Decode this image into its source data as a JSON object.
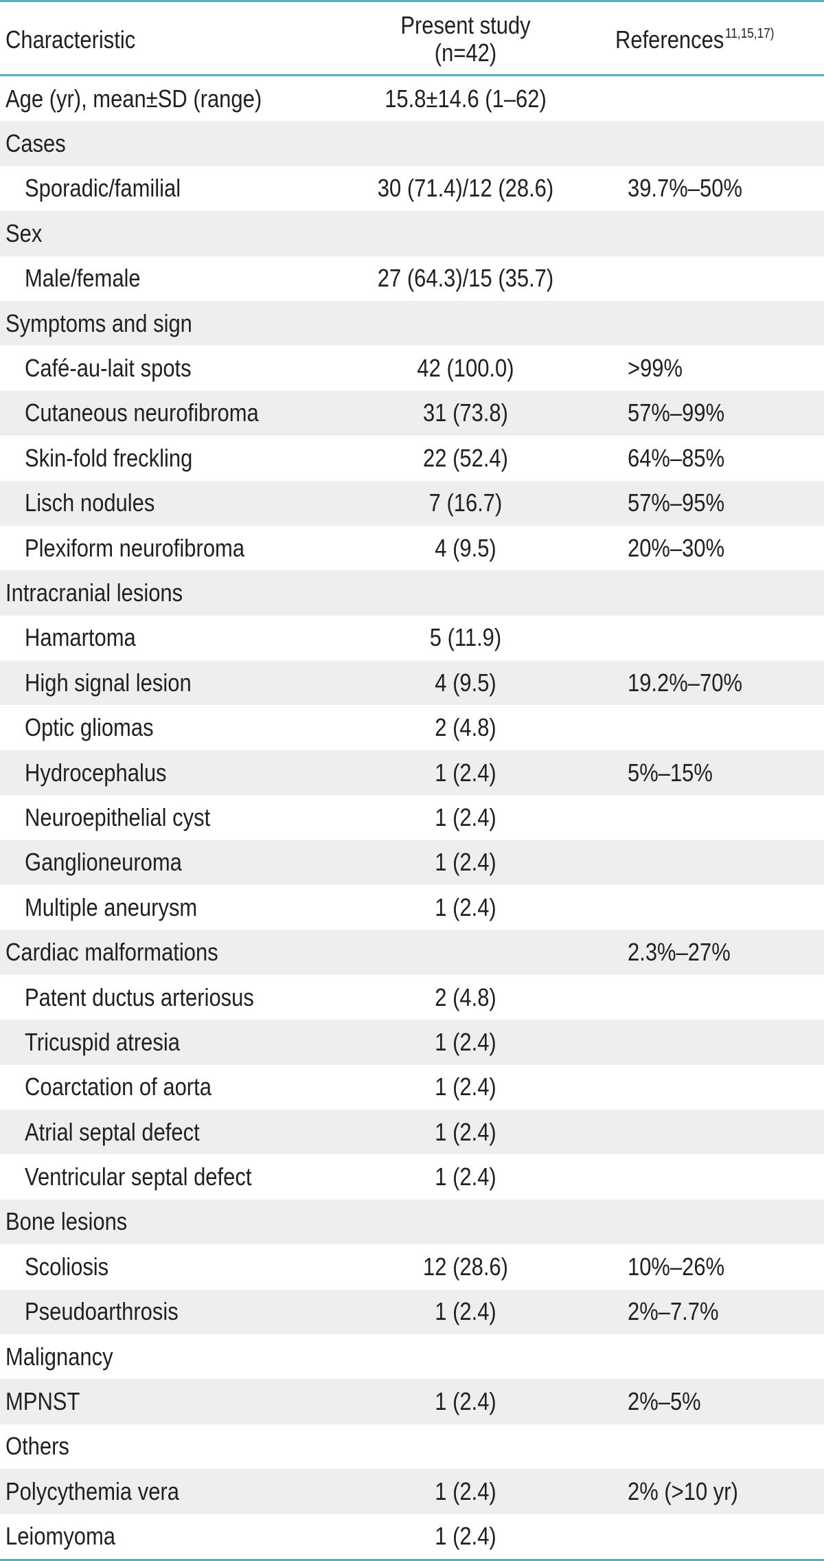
{
  "header": {
    "characteristic": "Characteristic",
    "present_line1": "Present study",
    "present_line2": "(n=42)",
    "references": "References",
    "references_sup": "11,15,17)"
  },
  "rows": [
    {
      "label": "Age (yr), mean±SD (range)",
      "present": "15.8±14.6 (1–62)",
      "ref": ""
    },
    {
      "label": "Cases",
      "present": "",
      "ref": ""
    },
    {
      "label": "Sporadic/familial",
      "present": "30 (71.4)/12 (28.6)",
      "ref": "39.7%–50%"
    },
    {
      "label": "Sex",
      "present": "",
      "ref": ""
    },
    {
      "label": "Male/female",
      "present": "27 (64.3)/15 (35.7)",
      "ref": ""
    },
    {
      "label": "Symptoms and sign",
      "present": "",
      "ref": ""
    },
    {
      "label": "Café-au-lait spots",
      "present": "42 (100.0)",
      "ref": ">99%"
    },
    {
      "label": "Cutaneous neurofibroma",
      "present": "31 (73.8)",
      "ref": "57%–99%"
    },
    {
      "label": "Skin-fold freckling",
      "present": "22 (52.4)",
      "ref": "64%–85%"
    },
    {
      "label": "Lisch nodules",
      "present": "7 (16.7)",
      "ref": "57%–95%"
    },
    {
      "label": "Plexiform neurofibroma",
      "present": "4 (9.5)",
      "ref": "20%–30%"
    },
    {
      "label": "Intracranial lesions",
      "present": "",
      "ref": ""
    },
    {
      "label": "Hamartoma",
      "present": "5 (11.9)",
      "ref": ""
    },
    {
      "label": "High signal lesion",
      "present": "4 (9.5)",
      "ref": "19.2%–70%"
    },
    {
      "label": "Optic gliomas",
      "present": "2 (4.8)",
      "ref": ""
    },
    {
      "label": "Hydrocephalus",
      "present": "1 (2.4)",
      "ref": "5%–15%"
    },
    {
      "label": "Neuroepithelial cyst",
      "present": "1 (2.4)",
      "ref": ""
    },
    {
      "label": "Ganglioneuroma",
      "present": "1 (2.4)",
      "ref": ""
    },
    {
      "label": "Multiple aneurysm",
      "present": "1 (2.4)",
      "ref": ""
    },
    {
      "label": "Cardiac malformations",
      "present": "",
      "ref": "2.3%–27%"
    },
    {
      "label": "Patent ductus arteriosus",
      "present": "2 (4.8)",
      "ref": ""
    },
    {
      "label": "Tricuspid atresia",
      "present": "1 (2.4)",
      "ref": ""
    },
    {
      "label": "Coarctation of aorta",
      "present": "1 (2.4)",
      "ref": ""
    },
    {
      "label": "Atrial septal defect",
      "present": "1 (2.4)",
      "ref": ""
    },
    {
      "label": "Ventricular septal defect",
      "present": "1 (2.4)",
      "ref": ""
    },
    {
      "label": "Bone lesions",
      "present": "",
      "ref": ""
    },
    {
      "label": "Scoliosis",
      "present": "12 (28.6)",
      "ref": "10%–26%"
    },
    {
      "label": "Pseudoarthrosis",
      "present": "1 (2.4)",
      "ref": "2%–7.7%"
    },
    {
      "label": "Malignancy",
      "present": "",
      "ref": ""
    },
    {
      "label": "MPNST",
      "present": "1 (2.4)",
      "ref": "2%–5%"
    },
    {
      "label": "Others",
      "present": "",
      "ref": ""
    },
    {
      "label": "Polycythemia vera",
      "present": "1 (2.4)",
      "ref": "2% (>10 yr)"
    },
    {
      "label": "Leiomyoma",
      "present": "1 (2.4)",
      "ref": ""
    }
  ]
}
